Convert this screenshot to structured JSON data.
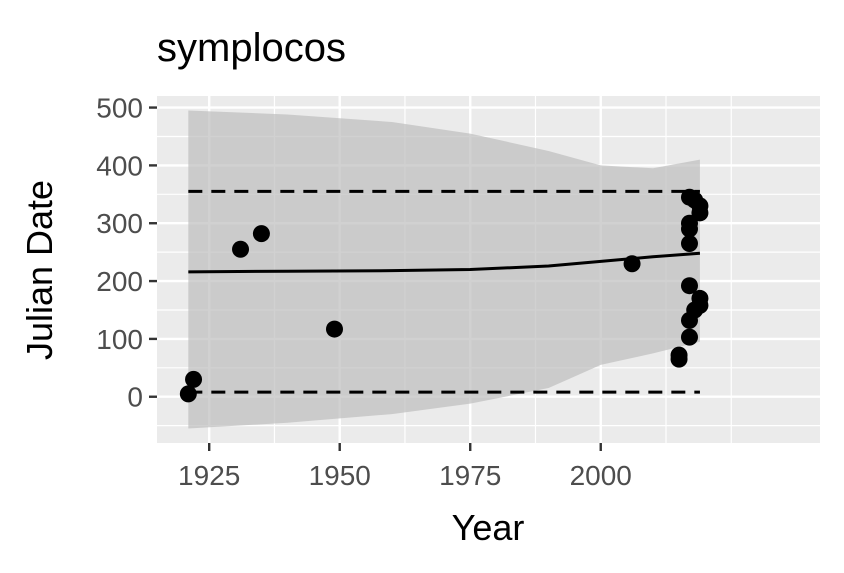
{
  "chart_data": {
    "type": "scatter",
    "title": "symplocos",
    "xlabel": "Year",
    "ylabel": "Julian Date",
    "xlim": [
      1915,
      2042
    ],
    "ylim": [
      -80,
      520
    ],
    "x_ticks": [
      1925,
      1950,
      1975,
      2000
    ],
    "y_ticks": [
      0,
      100,
      200,
      300,
      400,
      500
    ],
    "x_tick_labels": [
      "1925",
      "1950",
      "1975",
      "2000"
    ],
    "y_tick_labels": [
      "0",
      "100",
      "200",
      "300",
      "400",
      "500"
    ],
    "grid": true,
    "legend": "none",
    "colors": {
      "panel": "#ebebeb",
      "grid": "#ffffff",
      "ribbon": "#bdbdbd",
      "points": "#000000",
      "lines": "#000000",
      "ticks": "#333333"
    },
    "points": [
      {
        "x": 1921,
        "y": 5
      },
      {
        "x": 1922,
        "y": 30
      },
      {
        "x": 1931,
        "y": 255
      },
      {
        "x": 1935,
        "y": 282
      },
      {
        "x": 1949,
        "y": 117
      },
      {
        "x": 2006,
        "y": 230
      },
      {
        "x": 2015,
        "y": 65
      },
      {
        "x": 2015,
        "y": 72
      },
      {
        "x": 2017,
        "y": 345
      },
      {
        "x": 2017,
        "y": 300
      },
      {
        "x": 2017,
        "y": 290
      },
      {
        "x": 2017,
        "y": 265
      },
      {
        "x": 2017,
        "y": 192
      },
      {
        "x": 2017,
        "y": 132
      },
      {
        "x": 2017,
        "y": 103
      },
      {
        "x": 2018,
        "y": 340
      },
      {
        "x": 2018,
        "y": 150
      },
      {
        "x": 2019,
        "y": 330
      },
      {
        "x": 2019,
        "y": 318
      },
      {
        "x": 2019,
        "y": 170
      },
      {
        "x": 2019,
        "y": 158
      }
    ],
    "fit_line": {
      "style": "solid",
      "x": [
        1921,
        1940,
        1960,
        1975,
        1990,
        2000,
        2010,
        2019
      ],
      "y": [
        216,
        217,
        218,
        220,
        226,
        234,
        242,
        248
      ]
    },
    "upper_bound": {
      "style": "dashed",
      "x": [
        1921,
        2019
      ],
      "y": [
        355,
        355
      ]
    },
    "lower_bound": {
      "style": "dashed",
      "x": [
        1921,
        2019
      ],
      "y": [
        8,
        8
      ]
    },
    "ribbon": {
      "x": [
        1921,
        1940,
        1960,
        1975,
        1990,
        2000,
        2010,
        2019
      ],
      "upper": [
        495,
        488,
        475,
        455,
        425,
        400,
        395,
        410
      ],
      "lower": [
        -55,
        -45,
        -30,
        -12,
        15,
        55,
        75,
        95
      ]
    }
  }
}
